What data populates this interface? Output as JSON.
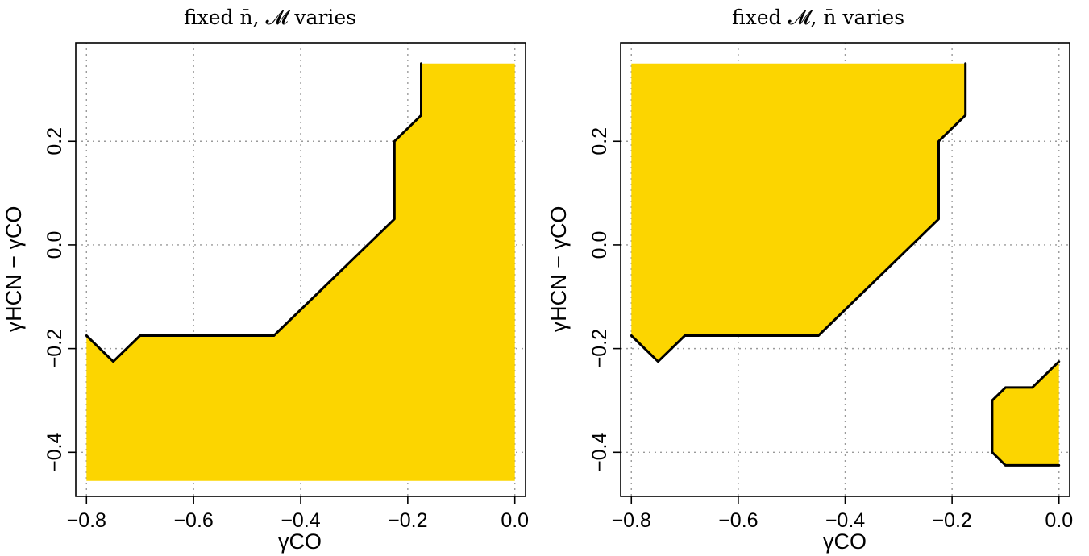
{
  "colors": {
    "region_fill": "#FCD500",
    "boundary": "#000000",
    "grid": "#9a9a9a"
  },
  "chart_data": [
    {
      "type": "area",
      "title": "fixed n̄, 𝓜 varies",
      "xlabel": "γCO",
      "ylabel": "γHCN − γCO",
      "xlim": [
        -0.82,
        0.02
      ],
      "ylim": [
        -0.485,
        0.39
      ],
      "grid": true,
      "xticks": [
        -0.8,
        -0.6,
        -0.4,
        -0.2,
        0.0
      ],
      "xtick_labels": [
        "−0.8",
        "−0.6",
        "−0.4",
        "−0.2",
        "0.0"
      ],
      "yticks": [
        -0.4,
        -0.2,
        0.0,
        0.2
      ],
      "ytick_labels": [
        "−0.4",
        "−0.2",
        "0.0",
        "0.2"
      ],
      "regions": [
        [
          [
            -0.8,
            -0.175
          ],
          [
            -0.75,
            -0.225
          ],
          [
            -0.7,
            -0.175
          ],
          [
            -0.45,
            -0.175
          ],
          [
            -0.225,
            0.05
          ],
          [
            -0.225,
            0.2
          ],
          [
            -0.175,
            0.25
          ],
          [
            -0.175,
            0.35
          ],
          [
            0.0,
            0.35
          ],
          [
            0.0,
            -0.455
          ],
          [
            -0.8,
            -0.455
          ]
        ]
      ],
      "boundaries": [
        [
          [
            -0.8,
            -0.175
          ],
          [
            -0.75,
            -0.225
          ],
          [
            -0.7,
            -0.175
          ],
          [
            -0.45,
            -0.175
          ],
          [
            -0.225,
            0.05
          ],
          [
            -0.225,
            0.2
          ],
          [
            -0.175,
            0.25
          ],
          [
            -0.175,
            0.35
          ]
        ]
      ]
    },
    {
      "type": "area",
      "title": "fixed 𝓜, n̄ varies",
      "xlabel": "γCO",
      "ylabel": "γHCN − γCO",
      "xlim": [
        -0.82,
        0.02
      ],
      "ylim": [
        -0.485,
        0.39
      ],
      "grid": true,
      "xticks": [
        -0.8,
        -0.6,
        -0.4,
        -0.2,
        0.0
      ],
      "xtick_labels": [
        "−0.8",
        "−0.6",
        "−0.4",
        "−0.2",
        "0.0"
      ],
      "yticks": [
        -0.4,
        -0.2,
        0.0,
        0.2
      ],
      "ytick_labels": [
        "−0.4",
        "−0.2",
        "0.0",
        "0.2"
      ],
      "regions": [
        [
          [
            -0.8,
            0.35
          ],
          [
            -0.175,
            0.35
          ],
          [
            -0.175,
            0.25
          ],
          [
            -0.225,
            0.2
          ],
          [
            -0.225,
            0.05
          ],
          [
            -0.45,
            -0.175
          ],
          [
            -0.7,
            -0.175
          ],
          [
            -0.75,
            -0.225
          ],
          [
            -0.8,
            -0.175
          ]
        ],
        [
          [
            -0.125,
            -0.3
          ],
          [
            -0.1,
            -0.275
          ],
          [
            -0.05,
            -0.275
          ],
          [
            0.0,
            -0.225
          ],
          [
            0.0,
            -0.425
          ],
          [
            -0.1,
            -0.425
          ],
          [
            -0.125,
            -0.4
          ]
        ]
      ],
      "boundaries": [
        [
          [
            -0.175,
            0.35
          ],
          [
            -0.175,
            0.25
          ],
          [
            -0.225,
            0.2
          ],
          [
            -0.225,
            0.05
          ],
          [
            -0.45,
            -0.175
          ],
          [
            -0.7,
            -0.175
          ],
          [
            -0.75,
            -0.225
          ],
          [
            -0.8,
            -0.175
          ]
        ],
        [
          [
            0.0,
            -0.225
          ],
          [
            -0.05,
            -0.275
          ],
          [
            -0.1,
            -0.275
          ],
          [
            -0.125,
            -0.3
          ],
          [
            -0.125,
            -0.4
          ],
          [
            -0.1,
            -0.425
          ],
          [
            0.0,
            -0.425
          ]
        ]
      ]
    }
  ]
}
